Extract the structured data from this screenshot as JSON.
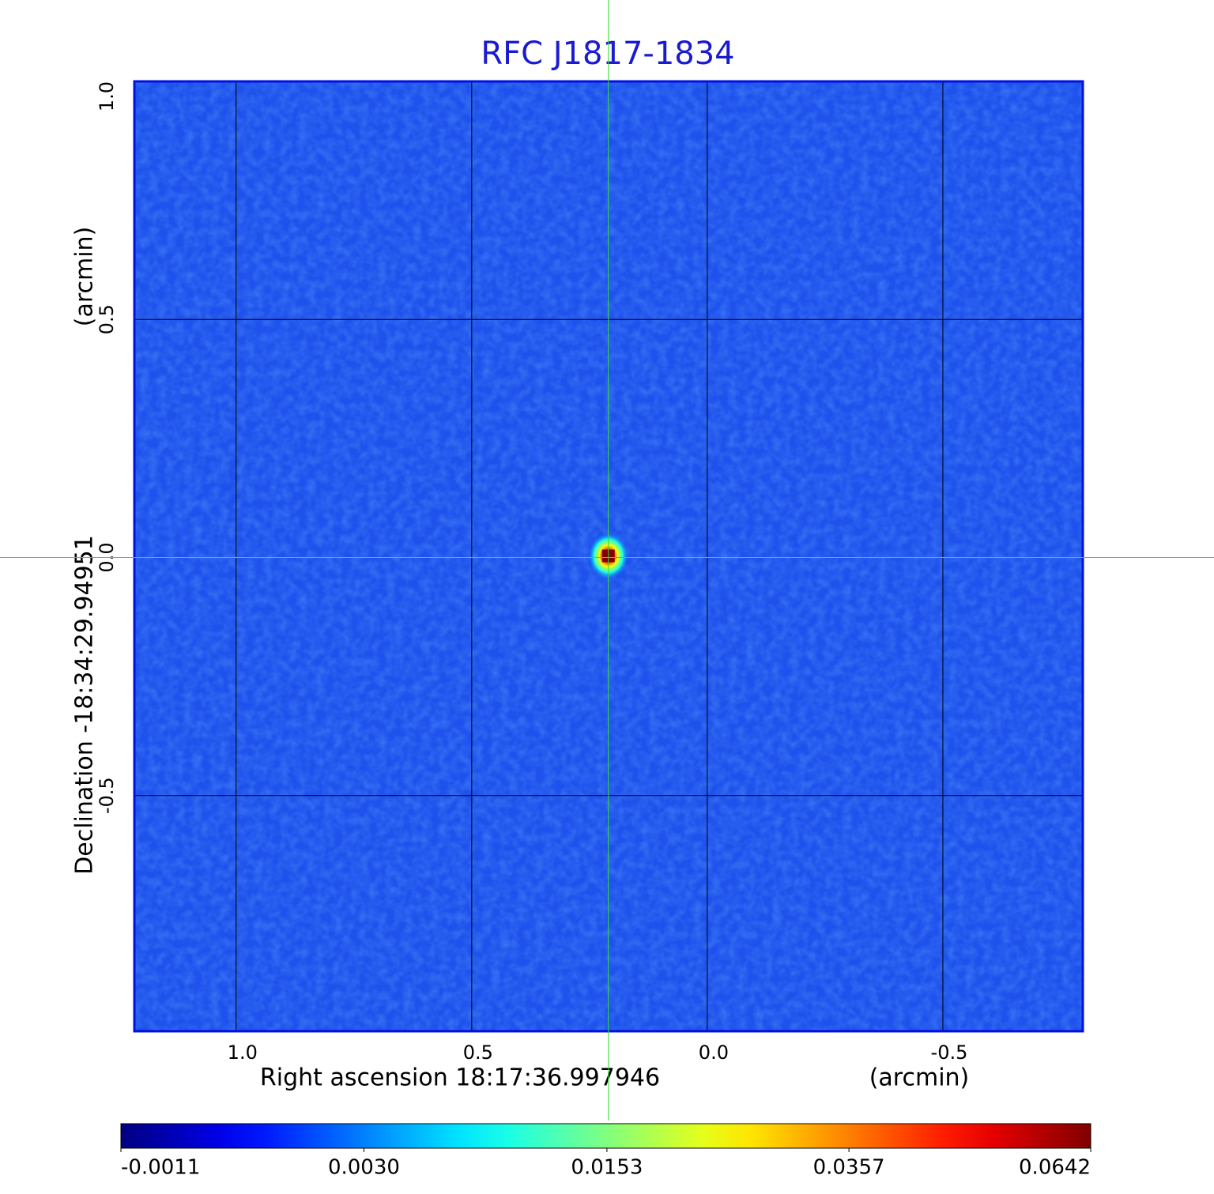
{
  "chart_data": {
    "type": "image",
    "title": "RFC J1817-1834",
    "xlabel": "Right ascension  18:17:36.997946",
    "xunit": "(arcmin)",
    "ylabel": "Declination  -18:34:29.94951",
    "yunit": "(arcmin)",
    "xlim": [
      1.216,
      -0.797
    ],
    "ylim": [
      -0.995,
      1.0
    ],
    "xticks": [
      {
        "value": 1,
        "label": "1.0"
      },
      0.5,
      {
        "value": 0,
        "label": "0.0"
      },
      -0.5
    ],
    "yticks": [
      {
        "value": 1,
        "label": "1.0"
      },
      0.5,
      {
        "value": 0,
        "label": "0.0"
      },
      -0.5
    ],
    "grid": true,
    "source": {
      "x": 0.21,
      "y": 0.0,
      "peak": 0.0642
    },
    "colorbar": {
      "scale": "sqrt",
      "clim": [
        -0.0011,
        0.0642
      ],
      "ticks": [
        -0.0011,
        {
          "value": 0.003,
          "label": "0.0030"
        },
        0.0153,
        0.0357,
        0.0642
      ]
    }
  }
}
